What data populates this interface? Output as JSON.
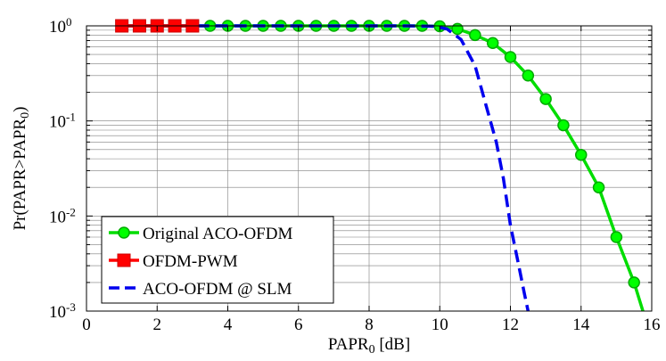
{
  "chart_data": {
    "type": "line",
    "xlabel": {
      "base": "PAPR",
      "sub": "0",
      "suffix": " [dB]"
    },
    "ylabel": {
      "prefix": "Pr(PAPR>PAPR",
      "sub": "0",
      "suffix": ")"
    },
    "xlim": [
      0,
      16
    ],
    "ylim": [
      0.001,
      1
    ],
    "yscale": "log",
    "grid": true,
    "xticks": [
      0,
      2,
      4,
      6,
      8,
      10,
      12,
      14,
      16
    ],
    "yticks": [
      {
        "value": 1,
        "base": "10",
        "exp": "0"
      },
      {
        "value": 0.1,
        "base": "10",
        "exp": "-1"
      },
      {
        "value": 0.01,
        "base": "10",
        "exp": "-2"
      },
      {
        "value": 0.001,
        "base": "10",
        "exp": "-3"
      }
    ],
    "legend_position": "bottom-left",
    "series": [
      {
        "name": "Original ACO-OFDM",
        "color": "#00dd00",
        "marker": "circle",
        "line": "solid",
        "x": [
          1,
          1.5,
          2,
          2.5,
          3,
          3.5,
          4,
          4.5,
          5,
          5.5,
          6,
          6.5,
          7,
          7.5,
          8,
          8.5,
          9,
          9.5,
          10,
          10.5,
          11,
          11.5,
          12,
          12.5,
          13,
          13.5,
          14,
          14.5,
          15,
          15.5,
          15.75
        ],
        "y": [
          1,
          1,
          1,
          1,
          1,
          1,
          1,
          1,
          1,
          1,
          1,
          1,
          1,
          1,
          1,
          1,
          1,
          1,
          0.99,
          0.93,
          0.8,
          0.66,
          0.47,
          0.3,
          0.17,
          0.09,
          0.044,
          0.02,
          0.006,
          0.002,
          0.001
        ],
        "marker_x": [
          3.5,
          4,
          4.5,
          5,
          5.5,
          6,
          6.5,
          7,
          7.5,
          8,
          8.5,
          9,
          9.5,
          10,
          10.5,
          11,
          11.5,
          12,
          12.5,
          13,
          13.5,
          14,
          14.5,
          15,
          15.5
        ]
      },
      {
        "name": "OFDM-PWM",
        "color": "#ff0000",
        "marker": "square",
        "line": "solid",
        "x": [
          1,
          1.5,
          2,
          2.5,
          3
        ],
        "y": [
          1,
          1,
          1,
          1,
          1
        ]
      },
      {
        "name": "ACO-OFDM @ SLM",
        "color": "#0000ee",
        "marker": "none",
        "line": "dashed",
        "x": [
          1,
          3,
          5,
          7,
          9,
          9.8,
          10.2,
          10.6,
          11,
          11.3,
          11.6,
          11.8,
          12,
          12.2,
          12.4,
          12.5
        ],
        "y": [
          1,
          1,
          1,
          1,
          1,
          0.99,
          0.93,
          0.72,
          0.38,
          0.15,
          0.06,
          0.025,
          0.008,
          0.0035,
          0.0015,
          0.001
        ]
      }
    ]
  }
}
